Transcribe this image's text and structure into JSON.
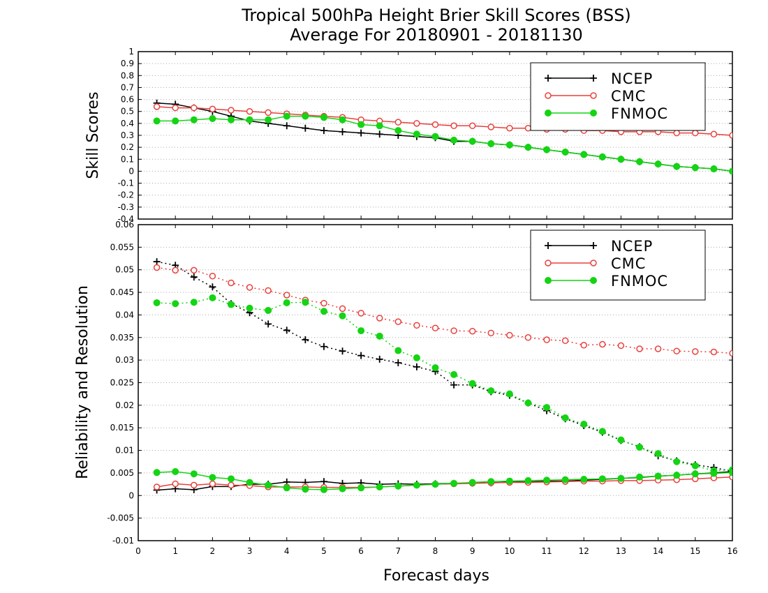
{
  "title": "Tropical 500hPa Height Brier Skill Scores (BSS)",
  "subtitle": "Average For 20180901 - 20181130",
  "xlabel": "Forecast days",
  "colors": {
    "NCEP": "#000000",
    "CMC": "#e8403c",
    "FNMOC": "#14d414"
  },
  "chart_data": [
    {
      "type": "line",
      "ylabel": "Skill Scores",
      "xlim": [
        0,
        16
      ],
      "ylim": [
        -0.4,
        1
      ],
      "xticks": [
        "0",
        "1",
        "2",
        "3",
        "4",
        "5",
        "6",
        "7",
        "8",
        "9",
        "10",
        "11",
        "12",
        "13",
        "14",
        "15",
        "16"
      ],
      "yticks": [
        "-0.4",
        "-0.3",
        "-0.2",
        "-0.1",
        "0",
        "0.1",
        "0.2",
        "0.3",
        "0.4",
        "0.5",
        "0.6",
        "0.7",
        "0.8",
        "0.9",
        "1"
      ],
      "grid": true,
      "legend": "top-right",
      "x": [
        0.5,
        1,
        1.5,
        2,
        2.5,
        3,
        3.5,
        4,
        4.5,
        5,
        5.5,
        6,
        6.5,
        7,
        7.5,
        8,
        8.5,
        9,
        9.5,
        10,
        10.5,
        11,
        11.5,
        12,
        12.5,
        13,
        13.5,
        14,
        14.5,
        15,
        15.5,
        16
      ],
      "series": [
        {
          "name": "NCEP",
          "marker": "plus",
          "dashed": false,
          "values": [
            0.57,
            0.56,
            0.53,
            0.5,
            0.46,
            0.42,
            0.4,
            0.38,
            0.36,
            0.34,
            0.33,
            0.32,
            0.31,
            0.3,
            0.29,
            0.28,
            0.25,
            0.25,
            0.23,
            0.22,
            0.2,
            0.18,
            0.16,
            0.14,
            0.12,
            0.1,
            0.08,
            0.06,
            0.04,
            0.03,
            0.02,
            0.0
          ]
        },
        {
          "name": "CMC",
          "marker": "open-circle",
          "dashed": false,
          "values": [
            0.54,
            0.53,
            0.53,
            0.52,
            0.51,
            0.5,
            0.49,
            0.48,
            0.47,
            0.46,
            0.45,
            0.43,
            0.42,
            0.41,
            0.4,
            0.39,
            0.38,
            0.38,
            0.37,
            0.36,
            0.36,
            0.35,
            0.35,
            0.34,
            0.34,
            0.33,
            0.33,
            0.33,
            0.32,
            0.32,
            0.31,
            0.3
          ]
        },
        {
          "name": "FNMOC",
          "marker": "filled-circle",
          "dashed": false,
          "values": [
            0.42,
            0.42,
            0.43,
            0.44,
            0.43,
            0.43,
            0.43,
            0.46,
            0.46,
            0.45,
            0.43,
            0.39,
            0.38,
            0.34,
            0.31,
            0.29,
            0.26,
            0.25,
            0.23,
            0.22,
            0.2,
            0.18,
            0.16,
            0.14,
            0.12,
            0.1,
            0.08,
            0.06,
            0.04,
            0.03,
            0.02,
            0.0
          ]
        }
      ]
    },
    {
      "type": "line",
      "ylabel": "Reliability and Resolution",
      "xlim": [
        0,
        16
      ],
      "ylim": [
        -0.01,
        0.06
      ],
      "xticks": [
        "0",
        "1",
        "2",
        "3",
        "4",
        "5",
        "6",
        "7",
        "8",
        "9",
        "10",
        "11",
        "12",
        "13",
        "14",
        "15",
        "16"
      ],
      "yticks": [
        "-0.01",
        "-0.005",
        "0",
        "0.005",
        "0.01",
        "0.015",
        "0.02",
        "0.025",
        "0.03",
        "0.035",
        "0.04",
        "0.045",
        "0.05",
        "0.055",
        "0.06"
      ],
      "grid": true,
      "legend": "top-right",
      "x": [
        0.5,
        1,
        1.5,
        2,
        2.5,
        3,
        3.5,
        4,
        4.5,
        5,
        5.5,
        6,
        6.5,
        7,
        7.5,
        8,
        8.5,
        9,
        9.5,
        10,
        10.5,
        11,
        11.5,
        12,
        12.5,
        13,
        13.5,
        14,
        14.5,
        15,
        15.5,
        16
      ],
      "series": [
        {
          "name": "NCEP",
          "role": "resolution",
          "marker": "plus",
          "dashed": true,
          "values": [
            0.0518,
            0.051,
            0.0484,
            0.0462,
            0.0425,
            0.0405,
            0.038,
            0.0366,
            0.0345,
            0.033,
            0.032,
            0.031,
            0.0302,
            0.0294,
            0.0285,
            0.0275,
            0.0245,
            0.0245,
            0.023,
            0.0222,
            0.0205,
            0.0188,
            0.017,
            0.0155,
            0.014,
            0.0122,
            0.0108,
            0.0088,
            0.0077,
            0.0068,
            0.0062,
            0.0053
          ]
        },
        {
          "name": "CMC",
          "role": "resolution",
          "marker": "open-circle",
          "dashed": true,
          "values": [
            0.0505,
            0.0499,
            0.0499,
            0.0486,
            0.0471,
            0.0461,
            0.0454,
            0.0444,
            0.0433,
            0.0426,
            0.0414,
            0.0404,
            0.0393,
            0.0385,
            0.0377,
            0.0371,
            0.0365,
            0.0364,
            0.036,
            0.0355,
            0.035,
            0.0345,
            0.0343,
            0.0333,
            0.0335,
            0.0332,
            0.0325,
            0.0325,
            0.032,
            0.0319,
            0.0318,
            0.0315
          ]
        },
        {
          "name": "FNMOC",
          "role": "resolution",
          "marker": "filled-circle",
          "dashed": true,
          "values": [
            0.0427,
            0.0425,
            0.0428,
            0.0438,
            0.0423,
            0.0415,
            0.041,
            0.0427,
            0.0428,
            0.0408,
            0.0398,
            0.0365,
            0.0353,
            0.0321,
            0.0305,
            0.0283,
            0.0268,
            0.0248,
            0.0232,
            0.0225,
            0.0205,
            0.0195,
            0.0172,
            0.0158,
            0.0142,
            0.0123,
            0.0107,
            0.0093,
            0.0075,
            0.0066,
            0.0055,
            0.0057
          ]
        },
        {
          "name": "NCEP",
          "role": "reliability",
          "marker": "plus",
          "dashed": false,
          "values": [
            0.0012,
            0.0015,
            0.0013,
            0.002,
            0.002,
            0.0025,
            0.0025,
            0.003,
            0.0029,
            0.0031,
            0.0027,
            0.0028,
            0.0025,
            0.0026,
            0.0025,
            0.0026,
            0.0027,
            0.0028,
            0.0028,
            0.003,
            0.003,
            0.0032,
            0.0032,
            0.0034,
            0.0036,
            0.0038,
            0.004,
            0.0043,
            0.0045,
            0.0048,
            0.005,
            0.0053
          ]
        },
        {
          "name": "CMC",
          "role": "reliability",
          "marker": "open-circle",
          "dashed": false,
          "values": [
            0.0019,
            0.0026,
            0.0023,
            0.0026,
            0.0023,
            0.0022,
            0.0019,
            0.0019,
            0.0019,
            0.0018,
            0.0018,
            0.0018,
            0.0019,
            0.0021,
            0.0023,
            0.0025,
            0.0026,
            0.0027,
            0.0028,
            0.0029,
            0.0029,
            0.003,
            0.0031,
            0.0032,
            0.0032,
            0.0033,
            0.0033,
            0.0034,
            0.0035,
            0.0037,
            0.0039,
            0.0041
          ]
        },
        {
          "name": "FNMOC",
          "role": "reliability",
          "marker": "filled-circle",
          "dashed": false,
          "values": [
            0.0051,
            0.0053,
            0.0048,
            0.004,
            0.0037,
            0.0029,
            0.0023,
            0.0017,
            0.0014,
            0.0013,
            0.0015,
            0.0017,
            0.0019,
            0.0021,
            0.0023,
            0.0025,
            0.0027,
            0.0029,
            0.0031,
            0.0032,
            0.0033,
            0.0034,
            0.0035,
            0.0036,
            0.0037,
            0.0038,
            0.0041,
            0.0043,
            0.0045,
            0.0048,
            0.0049,
            0.0051
          ]
        }
      ]
    }
  ]
}
